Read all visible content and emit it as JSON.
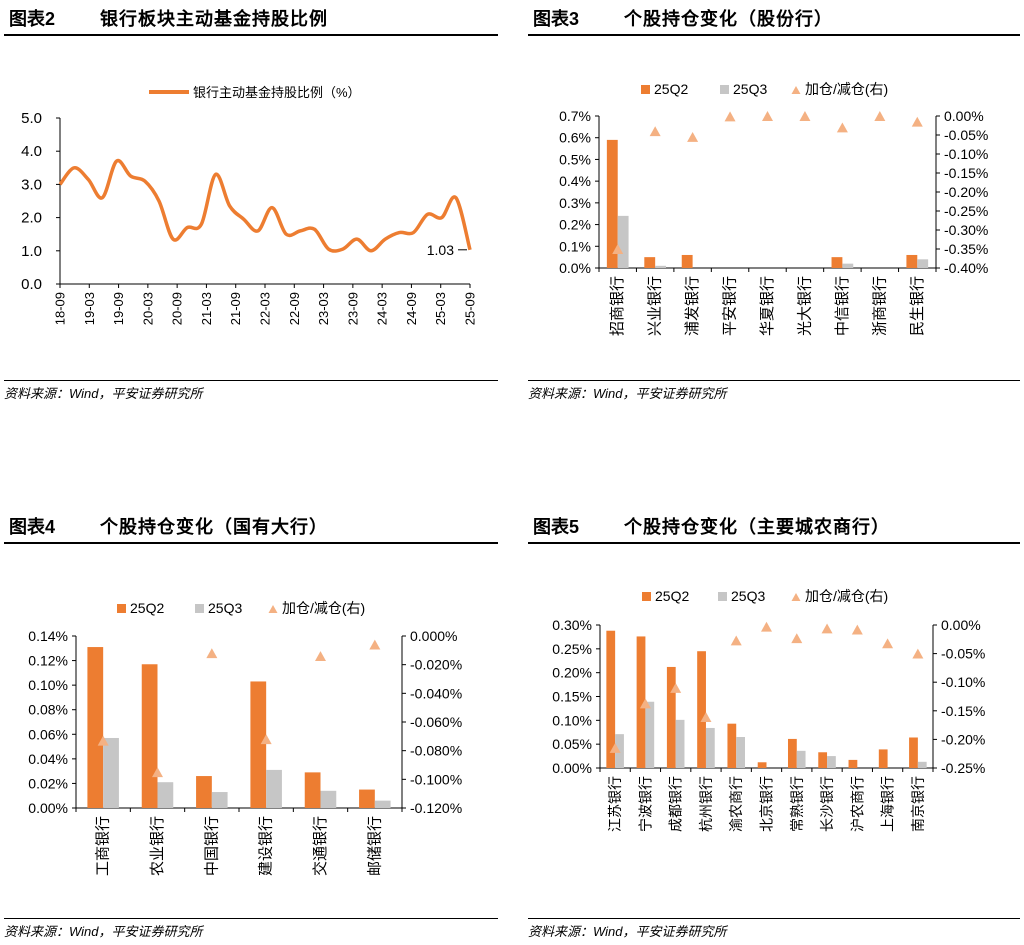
{
  "colors": {
    "q2": "#ED7D31",
    "q3": "#C6C6C6",
    "delta": "#F4B183",
    "axis": "#000000"
  },
  "source_label": "资料来源：Wind，平安证券研究所",
  "panels": [
    {
      "number": "图表2",
      "title": "银行板块主动基金持股比例",
      "chart_data": {
        "type": "line",
        "title": "银行板块主动基金持股比例",
        "legend": "银行主动基金持股比例（%）",
        "x_ticks": [
          "18-09",
          "19-03",
          "19-09",
          "20-03",
          "20-09",
          "21-03",
          "21-09",
          "22-03",
          "22-09",
          "23-03",
          "23-09",
          "24-03",
          "24-09",
          "25-03",
          "25-09"
        ],
        "ylim": [
          0,
          5
        ],
        "y_ticks": [
          "0.0",
          "1.0",
          "2.0",
          "3.0",
          "4.0",
          "5.0"
        ],
        "series": [
          {
            "name": "银行主动基金持股比例（%）",
            "values": [
              3.0,
              3.5,
              3.15,
              2.6,
              3.7,
              3.25,
              3.1,
              2.5,
              1.35,
              1.7,
              1.8,
              3.3,
              2.35,
              1.95,
              1.6,
              2.3,
              1.5,
              1.6,
              1.65,
              1.05,
              1.05,
              1.35,
              1.0,
              1.35,
              1.55,
              1.55,
              2.1,
              2.0,
              2.6,
              1.03
            ]
          }
        ],
        "annotation": "1.03"
      }
    },
    {
      "number": "图表3",
      "title": "个股持仓变化（股份行）",
      "chart_data": {
        "type": "bar",
        "title": "个股持仓变化（股份行）",
        "categories": [
          "招商银行",
          "兴业银行",
          "浦发银行",
          "平安银行",
          "华夏银行",
          "光大银行",
          "中信银行",
          "浙商银行",
          "民生银行"
        ],
        "series": [
          {
            "name": "25Q2",
            "axis": "left",
            "values": [
              0.59,
              0.05,
              0.06,
              0,
              0,
              0,
              0.05,
              0,
              0.06
            ]
          },
          {
            "name": "25Q3",
            "axis": "left",
            "values": [
              0.24,
              0.01,
              0,
              0,
              0,
              0,
              0.02,
              0,
              0.04
            ]
          },
          {
            "name": "加仓/减仓(右)",
            "axis": "right",
            "marker": "triangle",
            "values": [
              -0.35,
              -0.04,
              -0.055,
              -0.001,
              0,
              0,
              -0.03,
              0,
              -0.015
            ]
          }
        ],
        "ylim": [
          0,
          0.7
        ],
        "y_ticks": [
          "0.0%",
          "0.1%",
          "0.2%",
          "0.3%",
          "0.4%",
          "0.5%",
          "0.6%",
          "0.7%"
        ],
        "y2lim": [
          -0.4,
          0
        ],
        "y2_ticks": [
          "0.00%",
          "-0.05%",
          "-0.10%",
          "-0.15%",
          "-0.20%",
          "-0.25%",
          "-0.30%",
          "-0.35%",
          "-0.40%"
        ],
        "legend": [
          "25Q2",
          "25Q3",
          "加仓/减仓(右)"
        ]
      }
    },
    {
      "number": "图表4",
      "title": "个股持仓变化（国有大行）",
      "chart_data": {
        "type": "bar",
        "title": "个股持仓变化（国有大行）",
        "categories": [
          "工商银行",
          "农业银行",
          "中国银行",
          "建设银行",
          "交通银行",
          "邮储银行"
        ],
        "series": [
          {
            "name": "25Q2",
            "axis": "left",
            "values": [
              0.131,
              0.117,
              0.026,
              0.103,
              0.029,
              0.015
            ]
          },
          {
            "name": "25Q3",
            "axis": "left",
            "values": [
              0.057,
              0.021,
              0.013,
              0.031,
              0.014,
              0.006
            ]
          },
          {
            "name": "加仓/减仓(右)",
            "axis": "right",
            "marker": "triangle",
            "values": [
              -0.073,
              -0.095,
              -0.012,
              -0.072,
              -0.014,
              -0.006
            ]
          }
        ],
        "ylim": [
          0,
          0.14
        ],
        "y_ticks": [
          "0.00%",
          "0.02%",
          "0.04%",
          "0.06%",
          "0.08%",
          "0.10%",
          "0.12%",
          "0.14%"
        ],
        "y2lim": [
          -0.12,
          0
        ],
        "y2_ticks": [
          "0.000%",
          "-0.020%",
          "-0.040%",
          "-0.060%",
          "-0.080%",
          "-0.100%",
          "-0.120%"
        ],
        "legend": [
          "25Q2",
          "25Q3",
          "加仓/减仓(右)"
        ]
      }
    },
    {
      "number": "图表5",
      "title": "个股持仓变化（主要城农商行）",
      "chart_data": {
        "type": "bar",
        "title": "个股持仓变化（主要城农商行）",
        "categories": [
          "江苏银行",
          "宁波银行",
          "成都银行",
          "杭州银行",
          "渝农商行",
          "北京银行",
          "常熟银行",
          "长沙银行",
          "沪农商行",
          "上海银行",
          "南京银行"
        ],
        "series": [
          {
            "name": "25Q2",
            "axis": "left",
            "values": [
              0.288,
              0.276,
              0.212,
              0.245,
              0.093,
              0.012,
              0.061,
              0.033,
              0.017,
              0.039,
              0.064
            ]
          },
          {
            "name": "25Q3",
            "axis": "left",
            "values": [
              0.071,
              0.139,
              0.101,
              0.084,
              0.065,
              0,
              0.036,
              0.025,
              0,
              0,
              0.013
            ]
          },
          {
            "name": "加仓/减仓(右)",
            "axis": "right",
            "marker": "triangle",
            "values": [
              -0.215,
              -0.137,
              -0.11,
              -0.161,
              -0.027,
              -0.003,
              -0.023,
              -0.006,
              -0.008,
              -0.032,
              -0.05
            ]
          }
        ],
        "ylim": [
          0,
          0.3
        ],
        "y_ticks": [
          "0.00%",
          "0.05%",
          "0.10%",
          "0.15%",
          "0.20%",
          "0.25%",
          "0.30%"
        ],
        "y2lim": [
          -0.25,
          0
        ],
        "y2_ticks": [
          "0.00%",
          "-0.05%",
          "-0.10%",
          "-0.15%",
          "-0.20%",
          "-0.25%"
        ],
        "legend": [
          "25Q2",
          "25Q3",
          "加仓/减仓(右)"
        ]
      }
    }
  ]
}
